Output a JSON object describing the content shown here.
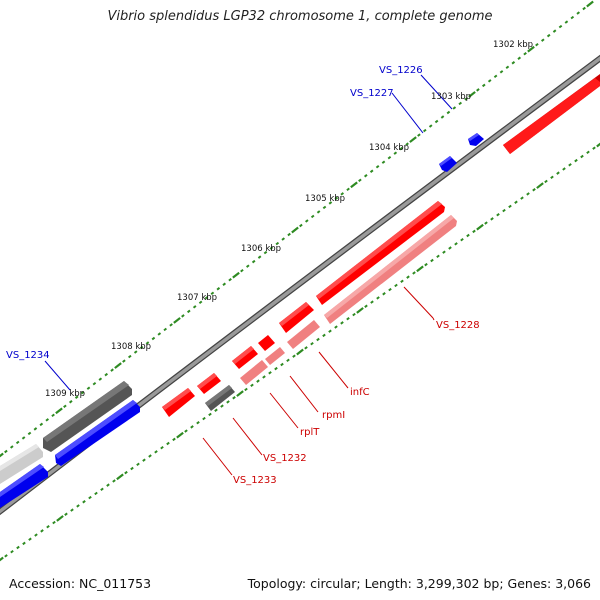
{
  "title": "Vibrio splendidus LGP32 chromosome 1, complete genome",
  "footer": {
    "accession": "Accession: NC_011753",
    "summary": "Topology: circular; Length: 3,299,302 bp; Genes: 3,066"
  },
  "colors": {
    "backbone": "#808080",
    "tick_major": "#2e8b22",
    "tick_minor": "#1a7a1a",
    "forward_gene": "#ff0000",
    "forward_gene_light": "#f08080",
    "forward_label": "#cc0000",
    "reverse_gene": "#0000ee",
    "reverse_label": "#0000cc",
    "gray_gene": "#555555",
    "light_gray_gene": "#cccccc"
  },
  "ticks": {
    "labels": [
      "1302 kbp",
      "1303 kbp",
      "1304 kbp",
      "1305 kbp",
      "1306 kbp",
      "1307 kbp",
      "1308 kbp",
      "1309 kbp"
    ]
  },
  "genes": {
    "forward_labels": [
      "VS_1228",
      "infC",
      "rpmI",
      "rplT",
      "VS_1232",
      "VS_1233"
    ],
    "reverse_labels": [
      "VS_1226",
      "VS_1227",
      "VS_1234"
    ]
  }
}
